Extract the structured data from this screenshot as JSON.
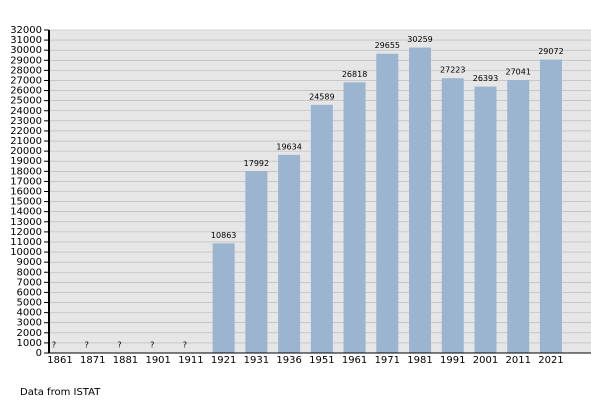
{
  "chart_data": {
    "type": "bar",
    "categories": [
      "1861",
      "1871",
      "1881",
      "1901",
      "1911",
      "1921",
      "1931",
      "1936",
      "1951",
      "1961",
      "1971",
      "1981",
      "1991",
      "2001",
      "2011",
      "2021"
    ],
    "values": [
      null,
      null,
      null,
      null,
      null,
      10863,
      17992,
      19634,
      24589,
      26818,
      29655,
      30259,
      27223,
      26393,
      27041,
      29072
    ],
    "value_labels": [
      "?",
      "?",
      "?",
      "?",
      "?",
      "10863",
      "17992",
      "19634",
      "24589",
      "26818",
      "29655",
      "30259",
      "27223",
      "26393",
      "27041",
      "29072"
    ],
    "color": "#9bb4d0",
    "ylim": [
      0,
      32000
    ],
    "yticks": [
      0,
      1000,
      2000,
      3000,
      4000,
      5000,
      6000,
      7000,
      8000,
      9000,
      10000,
      11000,
      12000,
      13000,
      14000,
      15000,
      16000,
      17000,
      18000,
      19000,
      20000,
      21000,
      22000,
      23000,
      24000,
      25000,
      26000,
      27000,
      28000,
      29000,
      30000,
      31000,
      32000
    ],
    "grid": true,
    "note": "Data from ISTAT"
  }
}
